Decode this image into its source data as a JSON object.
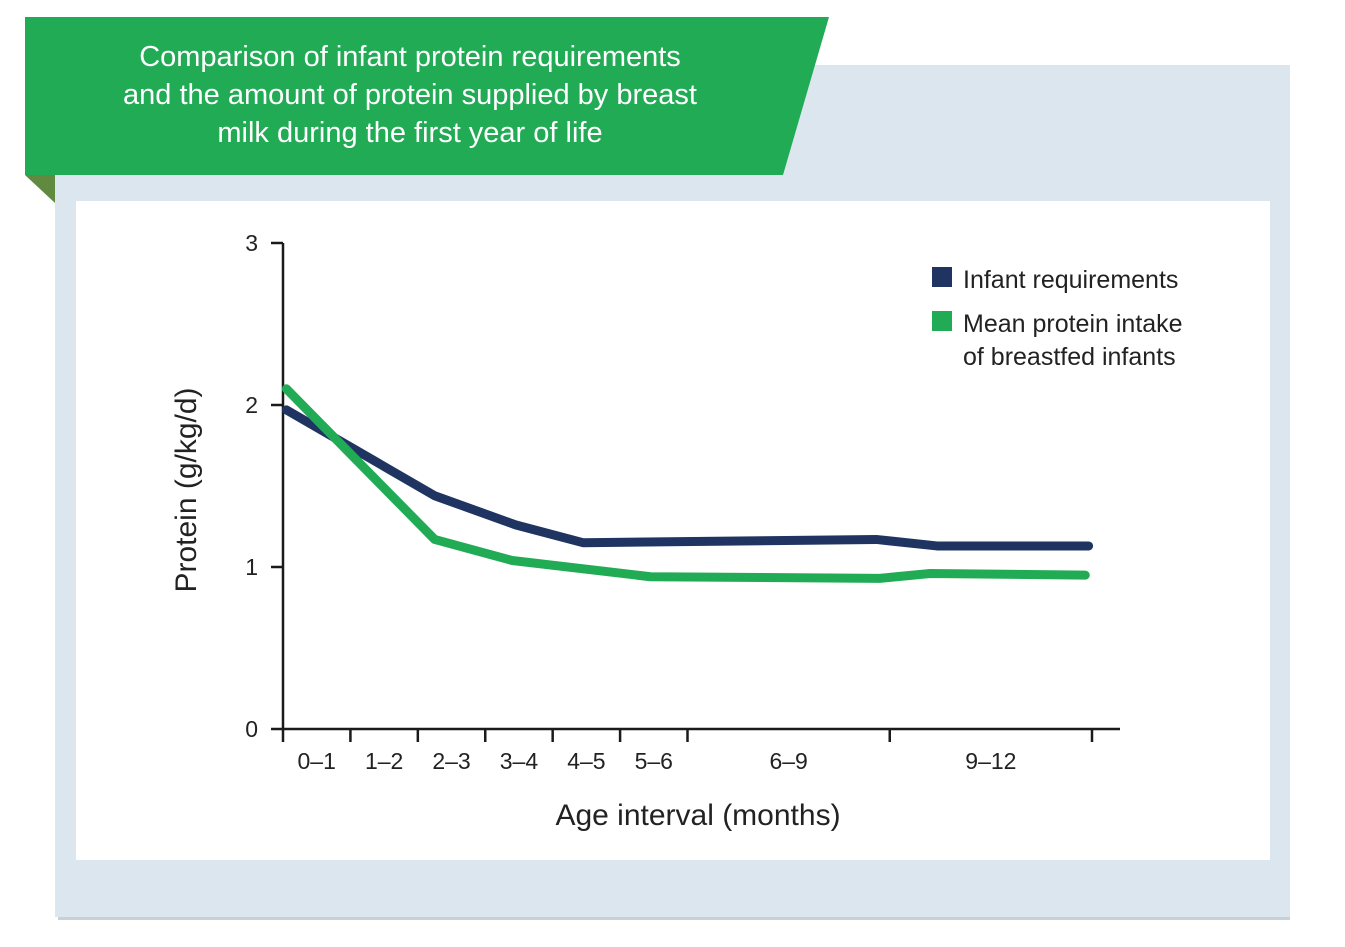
{
  "chart_data": {
    "type": "line",
    "title_lines": [
      "Comparison of infant protein requirements",
      "and the amount of protein supplied by breast",
      "milk during the first year of life"
    ],
    "xlabel": "Age interval (months)",
    "ylabel": "Protein (g/kg/d)",
    "ylim": [
      0,
      3
    ],
    "yticks": [
      "0",
      "1",
      "2",
      "3"
    ],
    "xlim": [
      0,
      12
    ],
    "xtick_positions": [
      0,
      1,
      2,
      3,
      4,
      5,
      6,
      9,
      12
    ],
    "categories": [
      {
        "label": "0–1",
        "center": 0.5
      },
      {
        "label": "1–2",
        "center": 1.5
      },
      {
        "label": "2–3",
        "center": 2.5
      },
      {
        "label": "3–4",
        "center": 3.5
      },
      {
        "label": "4–5",
        "center": 4.5
      },
      {
        "label": "5–6",
        "center": 5.5
      },
      {
        "label": "6–9",
        "center": 7.5
      },
      {
        "label": "9–12",
        "center": 10.5
      }
    ],
    "grid": false,
    "legend_position": "top-right",
    "series": [
      {
        "name": "Infant requirements",
        "legend_lines": [
          "Infant requirements"
        ],
        "color": "#1f3461",
        "x": [
          0.05,
          2.25,
          3.45,
          4.45,
          8.8,
          9.7,
          11.95
        ],
        "y": [
          1.97,
          1.44,
          1.26,
          1.15,
          1.17,
          1.13,
          1.13
        ]
      },
      {
        "name": "Mean protein intake of breastfed infants",
        "legend_lines": [
          "Mean protein intake",
          "of breastfed infants"
        ],
        "color": "#22ab55",
        "x": [
          0.05,
          2.25,
          3.4,
          5.45,
          8.85,
          9.6,
          11.9
        ],
        "y": [
          2.1,
          1.17,
          1.04,
          0.94,
          0.93,
          0.96,
          0.95
        ]
      }
    ]
  },
  "colors": {
    "banner": "#22ab55",
    "banner_fold": "#5f8a3f",
    "panel": "#dce6ee",
    "plot_bg": "#ffffff"
  }
}
